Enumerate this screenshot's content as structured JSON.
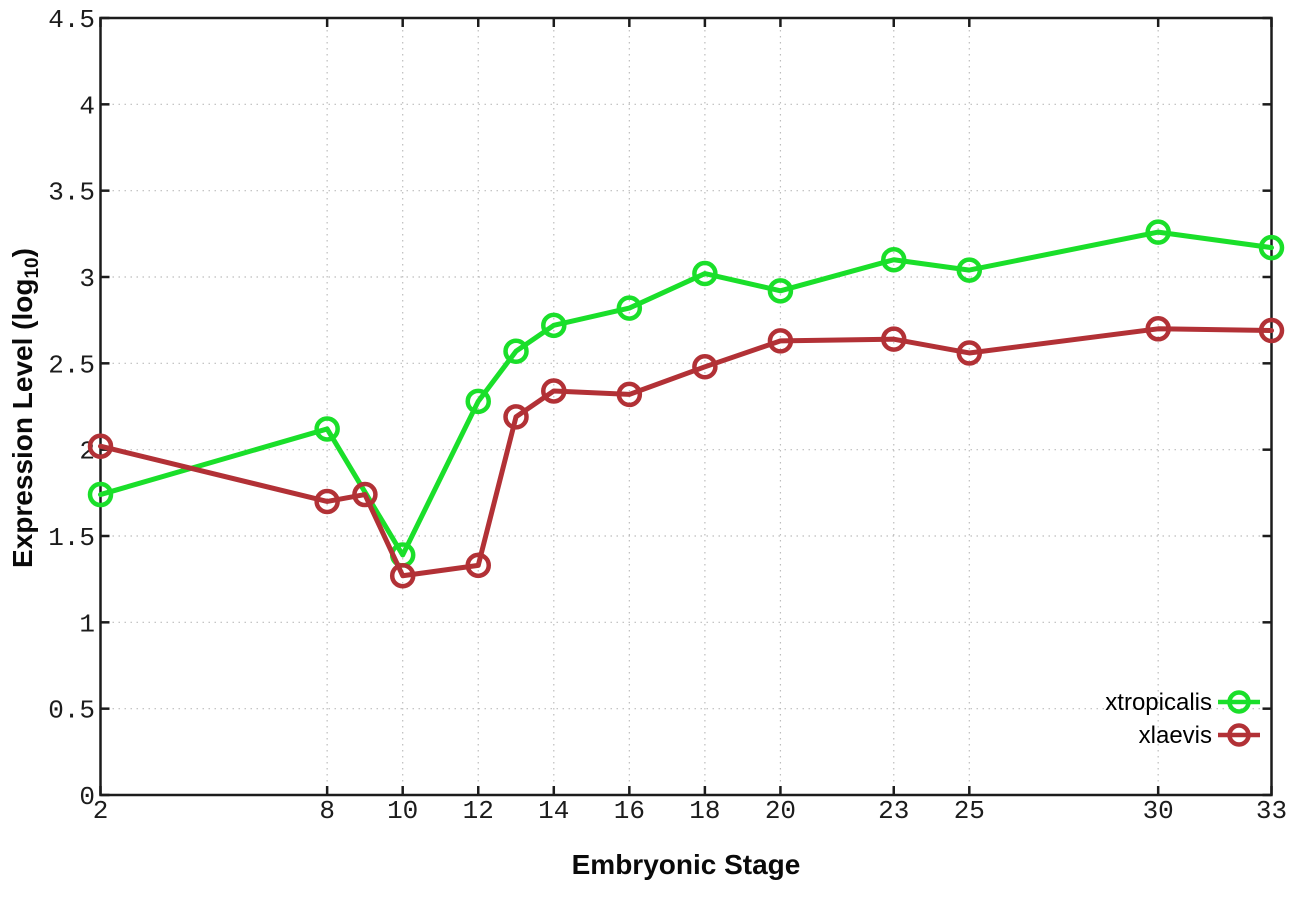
{
  "chart_data": {
    "type": "line",
    "title": "",
    "xlabel": "Embryonic Stage",
    "ylabel": "Expression Level (log10)",
    "ylabel_parts": {
      "base": "Expression Level (log",
      "sub": "10",
      "close": ")"
    },
    "xlim": [
      2,
      33
    ],
    "ylim": [
      0,
      4.5
    ],
    "x_ticks": [
      2,
      8,
      10,
      12,
      14,
      16,
      18,
      20,
      23,
      25,
      30,
      33
    ],
    "y_ticks": [
      0,
      0.5,
      1,
      1.5,
      2,
      2.5,
      3,
      3.5,
      4,
      4.5
    ],
    "grid": true,
    "legend": {
      "position": "inside-bottom-right",
      "entries": [
        "xtropicalis",
        "xlaevis"
      ]
    },
    "series": [
      {
        "name": "xtropicalis",
        "color": "#1adf2a",
        "marker": "open-circle",
        "points": [
          [
            2,
            1.74
          ],
          [
            8,
            2.12
          ],
          [
            10,
            1.39
          ],
          [
            12,
            2.28
          ],
          [
            13,
            2.57
          ],
          [
            14,
            2.72
          ],
          [
            16,
            2.82
          ],
          [
            18,
            3.02
          ],
          [
            20,
            2.92
          ],
          [
            23,
            3.1
          ],
          [
            25,
            3.04
          ],
          [
            30,
            3.26
          ],
          [
            33,
            3.17
          ]
        ]
      },
      {
        "name": "xlaevis",
        "color": "#b23136",
        "marker": "open-circle",
        "points": [
          [
            2,
            2.02
          ],
          [
            8,
            1.7
          ],
          [
            9,
            1.74
          ],
          [
            10,
            1.27
          ],
          [
            12,
            1.33
          ],
          [
            13,
            2.19
          ],
          [
            14,
            2.34
          ],
          [
            16,
            2.32
          ],
          [
            18,
            2.48
          ],
          [
            20,
            2.63
          ],
          [
            23,
            2.64
          ],
          [
            25,
            2.56
          ],
          [
            30,
            2.7
          ],
          [
            33,
            2.69
          ]
        ]
      }
    ],
    "colors": {
      "background": "#ffffff",
      "grid": "#bdbdbd",
      "axis": "#1c1c1c",
      "tick_text": "#1c1c1c"
    }
  }
}
